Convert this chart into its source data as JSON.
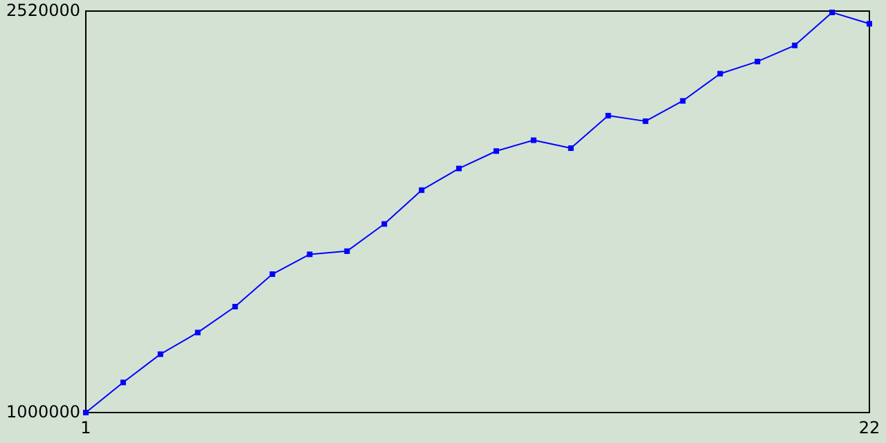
{
  "chart_data": {
    "type": "line",
    "x": [
      1,
      2,
      3,
      4,
      5,
      6,
      7,
      8,
      9,
      10,
      11,
      12,
      13,
      14,
      15,
      16,
      17,
      18,
      19,
      20,
      21,
      22
    ],
    "series": [
      {
        "color": "#0000ff",
        "values": [
          1000000,
          1114000,
          1221000,
          1303000,
          1401000,
          1524000,
          1599000,
          1611000,
          1714000,
          1842000,
          1924000,
          1990000,
          2031000,
          2001000,
          2124000,
          2103000,
          2180000,
          2283000,
          2329000,
          2390000,
          2515000,
          2472000
        ]
      }
    ],
    "xlim": [
      1,
      22
    ],
    "xticks": [
      1,
      22
    ],
    "ylim": [
      1000000,
      2520000
    ],
    "yticks": [
      1000000,
      2520000
    ],
    "marker": "square",
    "line_style": "solid"
  }
}
